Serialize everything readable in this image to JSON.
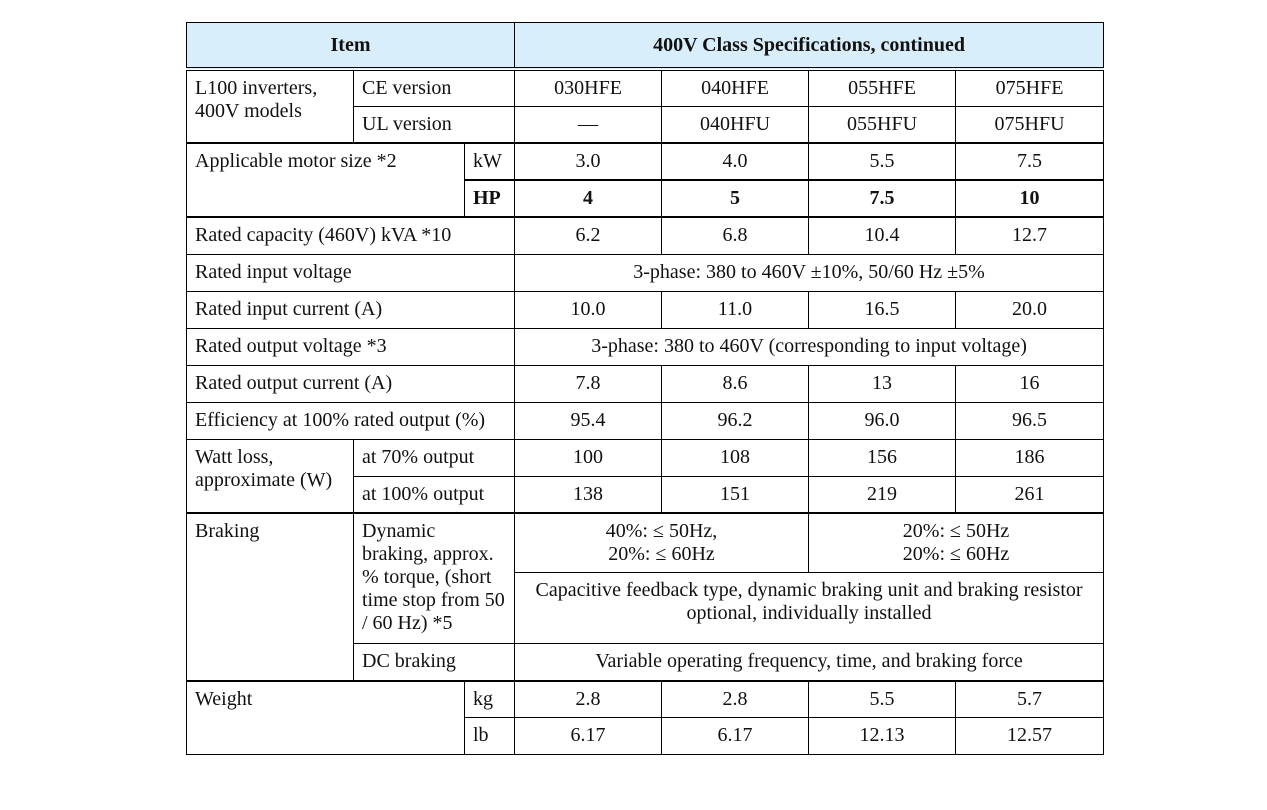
{
  "header": {
    "item": "Item",
    "spec": "400V Class Specifications, continued"
  },
  "models": {
    "label": "L100 inverters, 400V models",
    "ce_label": "CE version",
    "ce": [
      "030HFE",
      "040HFE",
      "055HFE",
      "075HFE"
    ],
    "ul_label": "UL version",
    "ul": [
      "—",
      "040HFU",
      "055HFU",
      "075HFU"
    ]
  },
  "motor": {
    "label": "Applicable motor size  *2",
    "kw_unit": "kW",
    "kw": [
      "3.0",
      "4.0",
      "5.5",
      "7.5"
    ],
    "hp_unit": "HP",
    "hp": [
      "4",
      "5",
      "7.5",
      "10"
    ]
  },
  "capacity": {
    "label": "Rated capacity (460V) kVA *10",
    "values": [
      "6.2",
      "6.8",
      "10.4",
      "12.7"
    ]
  },
  "input_voltage": {
    "label": "Rated input voltage",
    "value": "3-phase: 380 to 460V ±10%, 50/60 Hz ±5%"
  },
  "input_current": {
    "label": "Rated input current (A)",
    "values": [
      "10.0",
      "11.0",
      "16.5",
      "20.0"
    ]
  },
  "output_voltage": {
    "label": "Rated output voltage  *3",
    "value": "3-phase: 380 to 460V (corresponding to input voltage)"
  },
  "output_current": {
    "label": "Rated output current (A)",
    "values": [
      "7.8",
      "8.6",
      "13",
      "16"
    ]
  },
  "efficiency": {
    "label": "Efficiency at 100% rated output (%)",
    "values": [
      "95.4",
      "96.2",
      "96.0",
      "96.5"
    ]
  },
  "watt_loss": {
    "label": "Watt loss, approximate (W)",
    "at70_label": "at 70% output",
    "at70": [
      "100",
      "108",
      "156",
      "186"
    ],
    "at100_label": "at 100% output",
    "at100": [
      "138",
      "151",
      "219",
      "261"
    ]
  },
  "braking": {
    "label": "Braking",
    "dynamic_label": "Dynamic braking, approx. % torque, (short time stop from 50 / 60 Hz)  *5",
    "dynamic_left_1": "40%: ≤ 50Hz,",
    "dynamic_left_2": "20%: ≤ 60Hz",
    "dynamic_right_1": "20%: ≤ 50Hz",
    "dynamic_right_2": "20%: ≤ 60Hz",
    "feedback": "Capacitive feedback type, dynamic braking unit and braking resistor optional, individually installed",
    "dc_label": "DC braking",
    "dc_value": "Variable operating frequency, time, and braking force"
  },
  "weight": {
    "label": "Weight",
    "kg_unit": "kg",
    "kg": [
      "2.8",
      "2.8",
      "5.5",
      "5.7"
    ],
    "lb_unit": "lb",
    "lb": [
      "6.17",
      "6.17",
      "12.13",
      "12.57"
    ]
  }
}
